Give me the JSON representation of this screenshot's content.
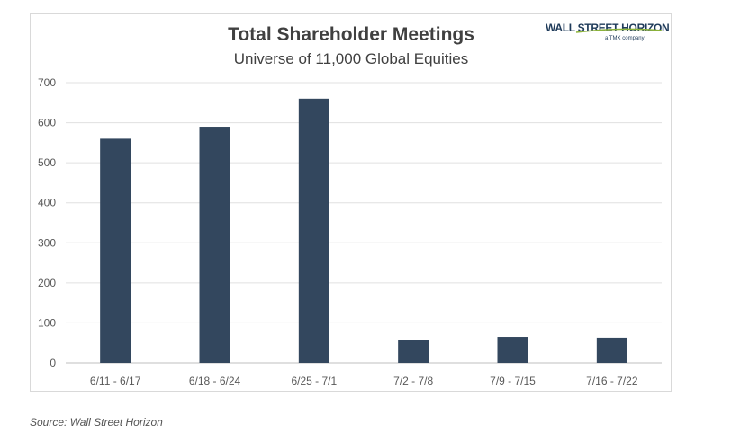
{
  "chart_data": {
    "type": "bar",
    "title": "Total Shareholder Meetings",
    "subtitle": "Universe of 11,000 Global Equities",
    "categories": [
      "6/11 - 6/17",
      "6/18 - 6/24",
      "6/25 - 7/1",
      "7/2 - 7/8",
      "7/9 - 7/15",
      "7/16 - 7/22"
    ],
    "values": [
      560,
      590,
      660,
      58,
      65,
      63
    ],
    "xlabel": "",
    "ylabel": "",
    "ylim": [
      0,
      700
    ],
    "yticks": [
      0,
      100,
      200,
      300,
      400,
      500,
      600,
      700
    ],
    "grid": true,
    "bar_color": "#33475e"
  },
  "logo": {
    "name": "WALL STREET HORIZON",
    "tagline": "a TMX company"
  },
  "source": "Source: Wall Street Horizon"
}
